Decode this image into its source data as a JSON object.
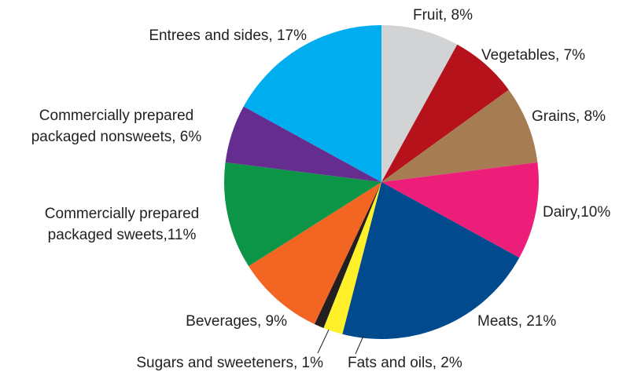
{
  "chart_data": {
    "type": "pie",
    "values": [
      8,
      7,
      8,
      10,
      21,
      2,
      1,
      9,
      11,
      6,
      17
    ],
    "value_labels": [
      "Fruit, 8%",
      "Vegetables, 7%",
      "Grains, 8%",
      "Dairy,10%",
      "Meats, 21%",
      "Fats and oils, 2%",
      "Sugars and sweeteners, 1%",
      "Beverages, 9%",
      "Commercially prepared\npackaged sweets,11%",
      "Commercially prepared\npackaged nonsweets, 6%",
      "Entrees and sides, 17%"
    ],
    "colors": [
      "#d1d3d4",
      "#b5121b",
      "#a67c52",
      "#ec1e7a",
      "#004a8d",
      "#fff02a",
      "#231f20",
      "#f26522",
      "#0c9447",
      "#662d91",
      "#00aeef"
    ]
  }
}
